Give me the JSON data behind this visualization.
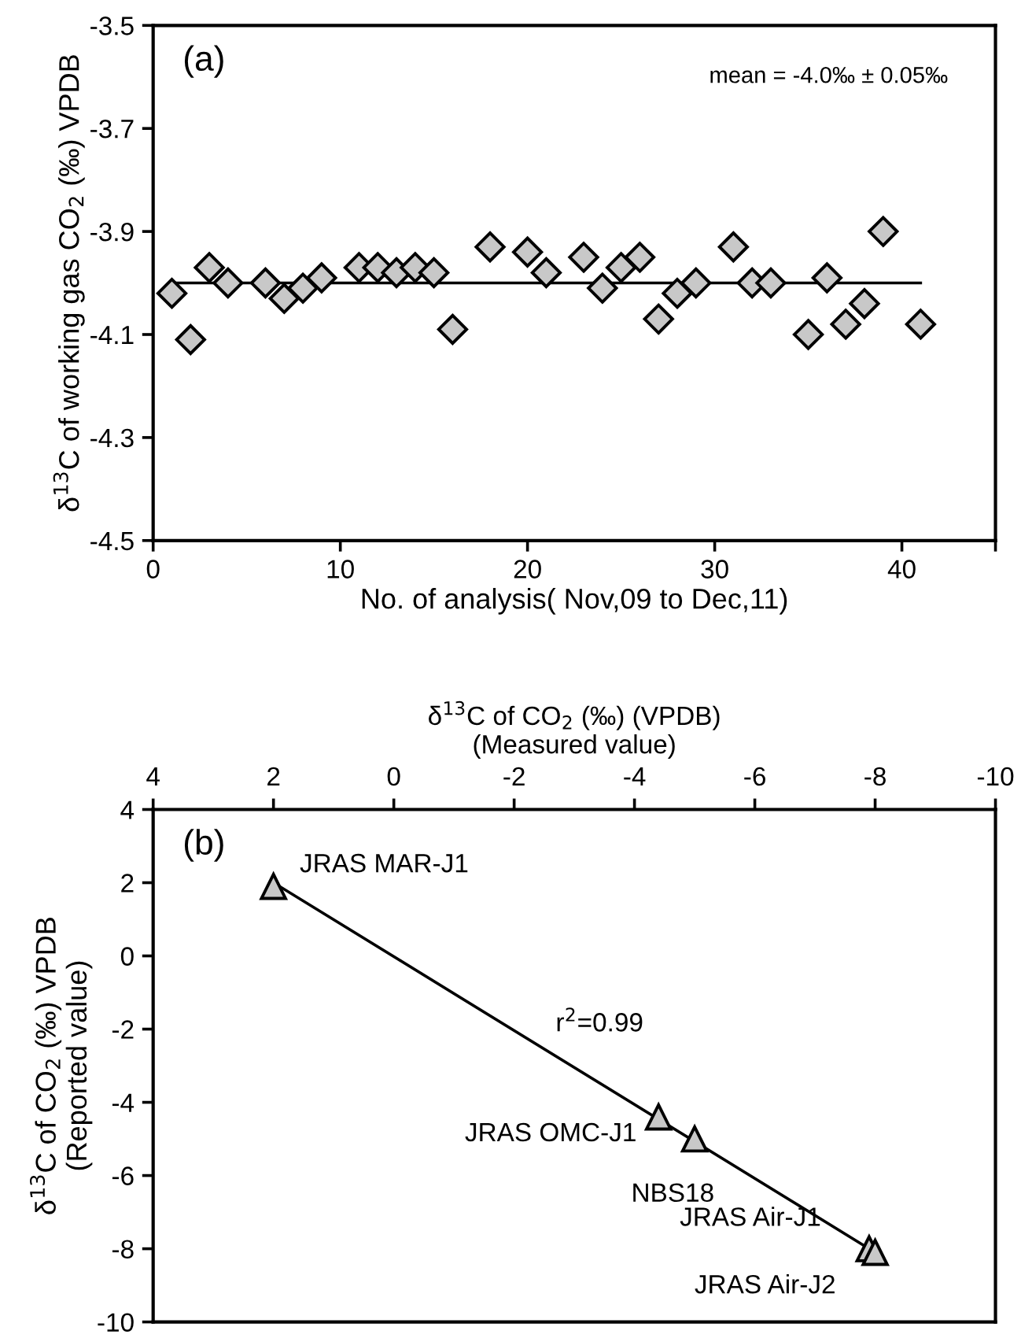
{
  "chart_data": [
    {
      "type": "scatter",
      "ylabel": "δ$^{13}$C of working gas CO$_{2}$ (‰) VPDB",
      "xlabel": "No. of analysis( Nov,09 to Dec,11)",
      "annotations": [
        "(a)",
        "mean = -4.0‰ ± 0.05‰"
      ],
      "xlim": [
        0,
        45
      ],
      "xticks": [
        0,
        10,
        20,
        30,
        40,
        {
          "value": 45,
          "label": null
        }
      ],
      "ylim": [
        -4.5,
        -3.5
      ],
      "yticks": [
        -4.5,
        -4.3,
        -4.1,
        -3.9,
        -3.7,
        -3.5
      ],
      "grid": false,
      "legend": false,
      "series": [
        {
          "type": "scatter",
          "marker": "diamond",
          "color": "#c8c8c8",
          "x": [
            1,
            2,
            3,
            4,
            6,
            7,
            8,
            9,
            11,
            12,
            13,
            14,
            15,
            16,
            18,
            20,
            21,
            23,
            24,
            25,
            26,
            27,
            28,
            29,
            31,
            32,
            33,
            35,
            36,
            37,
            38,
            39,
            41
          ],
          "values": [
            -4.02,
            -4.11,
            -3.97,
            -4.0,
            -4.0,
            -4.03,
            -4.01,
            -3.99,
            -3.97,
            -3.97,
            -3.98,
            -3.97,
            -3.98,
            -4.09,
            -3.93,
            -3.94,
            -3.98,
            -3.95,
            -4.01,
            -3.97,
            -3.95,
            -4.07,
            -4.02,
            -4.0,
            -3.93,
            -4.0,
            -4.0,
            -4.1,
            -3.99,
            -4.08,
            -4.04,
            -3.9,
            -4.08
          ]
        },
        {
          "type": "line",
          "color": "#000000",
          "x": [
            1,
            41
          ],
          "values": [
            -4.0,
            -4.0
          ]
        }
      ]
    },
    {
      "type": "scatter",
      "xlabel": "δ$^{13}$C of CO$_{2}$ (‰) (VPDB)\n(Measured value)",
      "ylabel": "δ$^{13}$C of CO$_{2}$ (‰) VPDB\n(Reported value)",
      "annotations": [
        "(b)",
        "r$^{2}$=0.99",
        {
          "text": "JRAS MAR-J1",
          "x": 2.0,
          "y": 1.9
        },
        {
          "text": "JRAS OMC-J1",
          "x": -4.4,
          "y": -4.4
        },
        {
          "text": "NBS18",
          "x": -5.0,
          "y": -5.0
        },
        {
          "text": "JRAS Air-J1",
          "x": -7.9,
          "y": -8.0
        },
        {
          "text": "JRAS Air-J2",
          "x": -8.0,
          "y": -8.1
        }
      ],
      "xlim": [
        4,
        -10
      ],
      "xticks": [
        4,
        2,
        0,
        -2,
        -4,
        -6,
        -8,
        -10
      ],
      "ylim": [
        -10,
        4
      ],
      "yticks": [
        -10,
        -8,
        -6,
        -4,
        -2,
        0,
        2,
        4
      ],
      "grid": false,
      "legend": false,
      "series": [
        {
          "type": "scatter",
          "marker": "triangle",
          "color": "#c8c8c8",
          "x": [
            2.0,
            -4.4,
            -5.0,
            -7.9,
            -8.0
          ],
          "values": [
            1.9,
            -4.4,
            -5.0,
            -8.0,
            -8.1
          ]
        },
        {
          "type": "line",
          "color": "#000000",
          "x": [
            2.0,
            -8.0
          ],
          "values": [
            2.0,
            -8.1
          ]
        }
      ]
    }
  ]
}
